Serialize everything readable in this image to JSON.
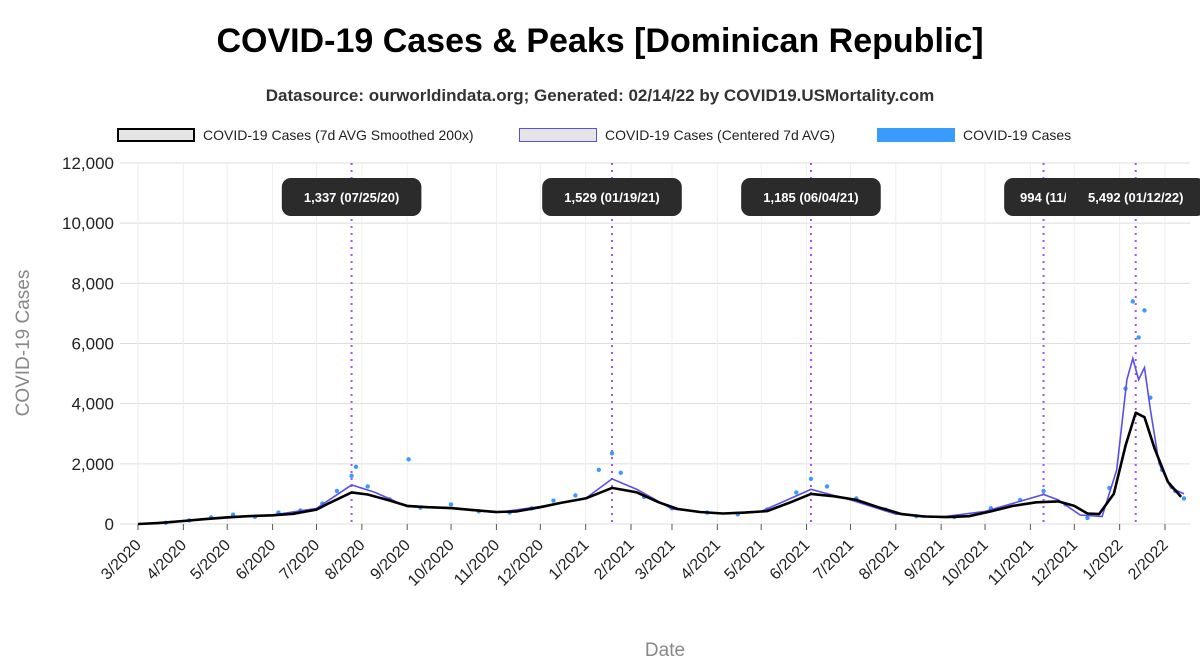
{
  "title": "COVID-19 Cases & Peaks [Dominican Republic]",
  "subtitle": "Datasource: ourworldindata.org; Generated: 02/14/22 by COVID19.USMortality.com",
  "legend": [
    {
      "label": "COVID-19 Cases (7d AVG Smoothed 200x)",
      "style": "smooth"
    },
    {
      "label": "COVID-19 Cases (Centered 7d AVG)",
      "style": "avg"
    },
    {
      "label": "COVID-19 Cases",
      "style": "cases"
    }
  ],
  "colors": {
    "smooth": "#000000",
    "avg": "#5a4fe6",
    "cases": "#3a9bff",
    "peak_line": "#a64dff",
    "label_bg": "#2b2b2b"
  },
  "chart_data": {
    "type": "line",
    "title": "COVID-19 Cases & Peaks [Dominican Republic]",
    "xlabel": "Date",
    "ylabel": "COVID-19 Cases",
    "ylim": [
      0,
      12000
    ],
    "yticks": [
      "0",
      "2,000",
      "4,000",
      "6,000",
      "8,000",
      "10,000",
      "12,000"
    ],
    "ytick_values": [
      0,
      2000,
      4000,
      6000,
      8000,
      10000,
      12000
    ],
    "xlim": [
      "2020-03-01",
      "2022-02-14"
    ],
    "xticks": [
      {
        "label": "3/2020",
        "date": "2020-03-01"
      },
      {
        "label": "4/2020",
        "date": "2020-04-01"
      },
      {
        "label": "5/2020",
        "date": "2020-05-01"
      },
      {
        "label": "6/2020",
        "date": "2020-06-01"
      },
      {
        "label": "7/2020",
        "date": "2020-07-01"
      },
      {
        "label": "8/2020",
        "date": "2020-08-01"
      },
      {
        "label": "9/2020",
        "date": "2020-09-01"
      },
      {
        "label": "10/2020",
        "date": "2020-10-01"
      },
      {
        "label": "11/2020",
        "date": "2020-11-01"
      },
      {
        "label": "12/2020",
        "date": "2020-12-01"
      },
      {
        "label": "1/2021",
        "date": "2021-01-01"
      },
      {
        "label": "2/2021",
        "date": "2021-02-01"
      },
      {
        "label": "3/2021",
        "date": "2021-03-01"
      },
      {
        "label": "4/2021",
        "date": "2021-04-01"
      },
      {
        "label": "5/2021",
        "date": "2021-05-01"
      },
      {
        "label": "6/2021",
        "date": "2021-06-01"
      },
      {
        "label": "7/2021",
        "date": "2021-07-01"
      },
      {
        "label": "8/2021",
        "date": "2021-08-01"
      },
      {
        "label": "9/2021",
        "date": "2021-09-01"
      },
      {
        "label": "10/2021",
        "date": "2021-10-01"
      },
      {
        "label": "11/2021",
        "date": "2021-11-01"
      },
      {
        "label": "12/2021",
        "date": "2021-12-01"
      },
      {
        "label": "1/2022",
        "date": "2022-01-01"
      },
      {
        "label": "2/2022",
        "date": "2022-02-01"
      }
    ],
    "grid": true,
    "legend_position": "top",
    "series": [
      {
        "name": "COVID-19 Cases (7d AVG Smoothed 200x)",
        "points": [
          [
            "2020-03-01",
            0
          ],
          [
            "2020-03-15",
            30
          ],
          [
            "2020-04-01",
            100
          ],
          [
            "2020-04-15",
            160
          ],
          [
            "2020-05-01",
            220
          ],
          [
            "2020-05-15",
            260
          ],
          [
            "2020-06-01",
            290
          ],
          [
            "2020-06-15",
            340
          ],
          [
            "2020-07-01",
            480
          ],
          [
            "2020-07-10",
            700
          ],
          [
            "2020-07-25",
            1050
          ],
          [
            "2020-08-05",
            980
          ],
          [
            "2020-08-20",
            780
          ],
          [
            "2020-09-01",
            600
          ],
          [
            "2020-09-15",
            560
          ],
          [
            "2020-10-01",
            530
          ],
          [
            "2020-10-15",
            470
          ],
          [
            "2020-11-01",
            400
          ],
          [
            "2020-11-15",
            420
          ],
          [
            "2020-12-01",
            560
          ],
          [
            "2020-12-15",
            700
          ],
          [
            "2021-01-01",
            850
          ],
          [
            "2021-01-19",
            1200
          ],
          [
            "2021-02-05",
            1050
          ],
          [
            "2021-02-20",
            720
          ],
          [
            "2021-03-05",
            500
          ],
          [
            "2021-03-20",
            400
          ],
          [
            "2021-04-05",
            350
          ],
          [
            "2021-04-20",
            380
          ],
          [
            "2021-05-05",
            430
          ],
          [
            "2021-05-20",
            700
          ],
          [
            "2021-06-04",
            1000
          ],
          [
            "2021-06-20",
            920
          ],
          [
            "2021-07-05",
            800
          ],
          [
            "2021-07-20",
            560
          ],
          [
            "2021-08-05",
            330
          ],
          [
            "2021-08-20",
            250
          ],
          [
            "2021-09-05",
            230
          ],
          [
            "2021-09-20",
            260
          ],
          [
            "2021-10-05",
            420
          ],
          [
            "2021-10-20",
            600
          ],
          [
            "2021-11-05",
            720
          ],
          [
            "2021-11-20",
            750
          ],
          [
            "2021-12-01",
            600
          ],
          [
            "2021-12-10",
            350
          ],
          [
            "2021-12-18",
            330
          ],
          [
            "2021-12-28",
            1000
          ],
          [
            "2022-01-05",
            2600
          ],
          [
            "2022-01-12",
            3700
          ],
          [
            "2022-01-18",
            3550
          ],
          [
            "2022-01-25",
            2500
          ],
          [
            "2022-02-03",
            1400
          ],
          [
            "2022-02-12",
            900
          ]
        ]
      },
      {
        "name": "COVID-19 Cases (Centered 7d AVG)",
        "points": [
          [
            "2020-03-01",
            0
          ],
          [
            "2020-04-01",
            110
          ],
          [
            "2020-05-01",
            240
          ],
          [
            "2020-06-01",
            300
          ],
          [
            "2020-07-01",
            520
          ],
          [
            "2020-07-25",
            1300
          ],
          [
            "2020-08-10",
            1050
          ],
          [
            "2020-09-01",
            580
          ],
          [
            "2020-10-01",
            520
          ],
          [
            "2020-11-01",
            380
          ],
          [
            "2020-12-01",
            580
          ],
          [
            "2021-01-01",
            850
          ],
          [
            "2021-01-19",
            1500
          ],
          [
            "2021-02-05",
            1150
          ],
          [
            "2021-03-01",
            500
          ],
          [
            "2021-04-01",
            350
          ],
          [
            "2021-05-01",
            420
          ],
          [
            "2021-06-04",
            1150
          ],
          [
            "2021-07-01",
            800
          ],
          [
            "2021-08-01",
            330
          ],
          [
            "2021-09-01",
            230
          ],
          [
            "2021-10-01",
            420
          ],
          [
            "2021-11-10",
            980
          ],
          [
            "2021-11-20",
            800
          ],
          [
            "2021-12-05",
            300
          ],
          [
            "2021-12-20",
            250
          ],
          [
            "2021-12-30",
            1800
          ],
          [
            "2022-01-06",
            4800
          ],
          [
            "2022-01-10",
            5500
          ],
          [
            "2022-01-14",
            4800
          ],
          [
            "2022-01-18",
            5200
          ],
          [
            "2022-01-22",
            3800
          ],
          [
            "2022-01-28",
            2000
          ],
          [
            "2022-02-05",
            1200
          ],
          [
            "2022-02-14",
            1000
          ]
        ]
      },
      {
        "name": "COVID-19 Cases",
        "points": [
          [
            "2020-03-20",
            40
          ],
          [
            "2020-04-05",
            120
          ],
          [
            "2020-04-20",
            220
          ],
          [
            "2020-05-05",
            310
          ],
          [
            "2020-05-20",
            240
          ],
          [
            "2020-06-05",
            380
          ],
          [
            "2020-06-20",
            450
          ],
          [
            "2020-07-05",
            680
          ],
          [
            "2020-07-15",
            1100
          ],
          [
            "2020-07-25",
            1600
          ],
          [
            "2020-07-28",
            1900
          ],
          [
            "2020-08-05",
            1250
          ],
          [
            "2020-08-20",
            820
          ],
          [
            "2020-09-02",
            2150
          ],
          [
            "2020-09-10",
            540
          ],
          [
            "2020-10-01",
            650
          ],
          [
            "2020-10-20",
            420
          ],
          [
            "2020-11-10",
            380
          ],
          [
            "2020-11-25",
            520
          ],
          [
            "2020-12-10",
            780
          ],
          [
            "2020-12-25",
            950
          ],
          [
            "2021-01-10",
            1800
          ],
          [
            "2021-01-19",
            2350
          ],
          [
            "2021-01-25",
            1700
          ],
          [
            "2021-02-10",
            900
          ],
          [
            "2021-03-01",
            520
          ],
          [
            "2021-03-25",
            380
          ],
          [
            "2021-04-15",
            320
          ],
          [
            "2021-05-05",
            480
          ],
          [
            "2021-05-25",
            1050
          ],
          [
            "2021-06-04",
            1500
          ],
          [
            "2021-06-15",
            1250
          ],
          [
            "2021-07-05",
            850
          ],
          [
            "2021-07-25",
            480
          ],
          [
            "2021-08-15",
            260
          ],
          [
            "2021-09-10",
            230
          ],
          [
            "2021-10-05",
            520
          ],
          [
            "2021-10-25",
            800
          ],
          [
            "2021-11-10",
            1100
          ],
          [
            "2021-11-25",
            650
          ],
          [
            "2021-12-10",
            200
          ],
          [
            "2021-12-25",
            1200
          ],
          [
            "2022-01-05",
            4500
          ],
          [
            "2022-01-10",
            7400
          ],
          [
            "2022-01-14",
            6200
          ],
          [
            "2022-01-18",
            7100
          ],
          [
            "2022-01-22",
            4200
          ],
          [
            "2022-01-30",
            1800
          ],
          [
            "2022-02-08",
            1100
          ],
          [
            "2022-02-14",
            850
          ]
        ]
      }
    ],
    "peaks": [
      {
        "label": "1,337 (07/25/20)",
        "date": "2020-07-25",
        "value": 1337
      },
      {
        "label": "1,529 (01/19/21)",
        "date": "2021-01-19",
        "value": 1529
      },
      {
        "label": "1,185 (06/04/21)",
        "date": "2021-06-04",
        "value": 1185
      },
      {
        "label": "994 (11/",
        "date": "2021-11-10",
        "value": 994
      },
      {
        "label": "5,492 (01/12/22)",
        "date": "2022-01-12",
        "value": 5492
      }
    ]
  }
}
